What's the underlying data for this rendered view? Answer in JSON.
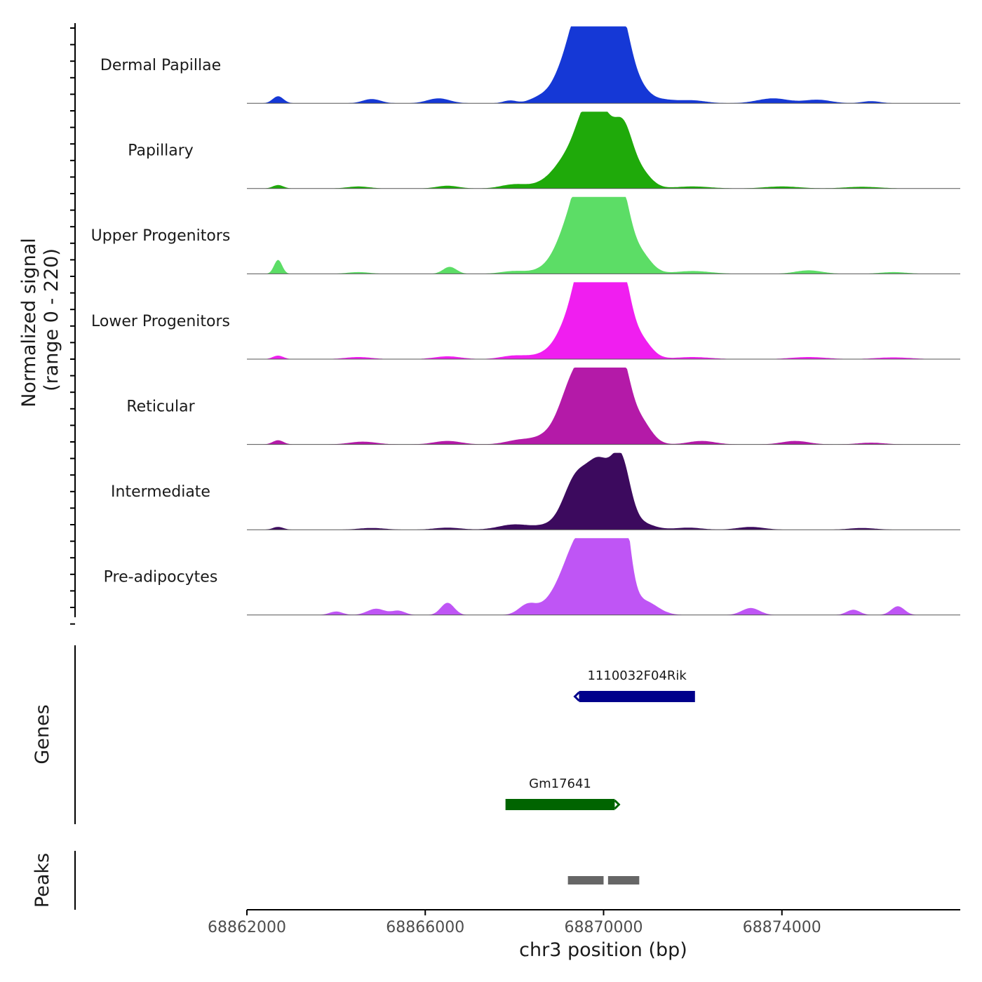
{
  "chart_data": {
    "type": "area",
    "title": "",
    "xlabel": "chr3 position (bp)",
    "xlim": [
      68862000,
      68878000
    ],
    "x_ticks": [
      68862000,
      68866000,
      68870000,
      68874000
    ],
    "x_tick_labels": [
      "68862000",
      "68866000",
      "68870000",
      "68874000"
    ],
    "signal_panel": {
      "ylabel_line1": "Normalized signal",
      "ylabel_line2": "(range 0 - 220)",
      "y_range": [
        0,
        220
      ],
      "tracks": [
        {
          "name": "Dermal Papillae",
          "color": "#1538d6",
          "peaks": [
            [
              68862700,
              20,
              120
            ],
            [
              68864800,
              12,
              200
            ],
            [
              68866300,
              14,
              250
            ],
            [
              68867900,
              8,
              150
            ],
            [
              68868500,
              10,
              200
            ],
            [
              68869300,
              140,
              350
            ],
            [
              68869550,
              160,
              240
            ],
            [
              68869900,
              150,
              230
            ],
            [
              68870150,
              110,
              220
            ],
            [
              68870400,
              170,
              200
            ],
            [
              68870700,
              60,
              250
            ],
            [
              68871300,
              10,
              300
            ],
            [
              68872000,
              8,
              300
            ],
            [
              68873800,
              14,
              350
            ],
            [
              68874800,
              10,
              300
            ],
            [
              68876000,
              6,
              200
            ]
          ]
        },
        {
          "name": "Papillary",
          "color": "#1faa0a",
          "peaks": [
            [
              68862700,
              10,
              120
            ],
            [
              68864500,
              6,
              250
            ],
            [
              68866500,
              8,
              250
            ],
            [
              68868000,
              12,
              300
            ],
            [
              68868700,
              10,
              300
            ],
            [
              68869300,
              100,
              350
            ],
            [
              68869600,
              120,
              220
            ],
            [
              68869900,
              140,
              220
            ],
            [
              68870150,
              80,
              220
            ],
            [
              68870450,
              140,
              200
            ],
            [
              68870800,
              50,
              250
            ],
            [
              68872000,
              6,
              400
            ],
            [
              68874000,
              6,
              400
            ],
            [
              68875800,
              5,
              400
            ]
          ]
        },
        {
          "name": "Upper Progenitors",
          "color": "#5cdd66",
          "peaks": [
            [
              68862700,
              40,
              90
            ],
            [
              68864500,
              5,
              250
            ],
            [
              68866550,
              20,
              150
            ],
            [
              68868000,
              8,
              300
            ],
            [
              68868800,
              15,
              300
            ],
            [
              68869300,
              150,
              300
            ],
            [
              68869600,
              180,
              220
            ],
            [
              68869900,
              190,
              220
            ],
            [
              68870150,
              110,
              220
            ],
            [
              68870400,
              180,
              200
            ],
            [
              68870800,
              60,
              250
            ],
            [
              68872000,
              8,
              400
            ],
            [
              68874600,
              10,
              300
            ],
            [
              68876500,
              5,
              300
            ]
          ]
        },
        {
          "name": "Lower Progenitors",
          "color": "#f01ef0",
          "peaks": [
            [
              68862700,
              10,
              120
            ],
            [
              68864500,
              6,
              300
            ],
            [
              68866500,
              8,
              300
            ],
            [
              68868000,
              10,
              300
            ],
            [
              68868700,
              12,
              300
            ],
            [
              68869300,
              120,
              300
            ],
            [
              68869550,
              170,
              200
            ],
            [
              68869900,
              180,
              220
            ],
            [
              68870150,
              110,
              220
            ],
            [
              68870400,
              200,
              200
            ],
            [
              68870800,
              60,
              250
            ],
            [
              68872000,
              6,
              400
            ],
            [
              68874600,
              6,
              400
            ],
            [
              68876500,
              5,
              400
            ]
          ]
        },
        {
          "name": "Reticular",
          "color": "#b41aa8",
          "peaks": [
            [
              68862700,
              12,
              120
            ],
            [
              68864600,
              8,
              300
            ],
            [
              68866500,
              10,
              300
            ],
            [
              68868100,
              12,
              300
            ],
            [
              68868700,
              18,
              300
            ],
            [
              68869300,
              150,
              300
            ],
            [
              68869700,
              130,
              300
            ],
            [
              68869900,
              180,
              220
            ],
            [
              68870150,
              70,
              220
            ],
            [
              68870400,
              190,
              200
            ],
            [
              68870800,
              70,
              250
            ],
            [
              68872200,
              10,
              300
            ],
            [
              68874300,
              10,
              300
            ],
            [
              68876000,
              5,
              300
            ]
          ]
        },
        {
          "name": "Intermediate",
          "color": "#3c0a5e",
          "peaks": [
            [
              68862700,
              8,
              120
            ],
            [
              68864800,
              5,
              300
            ],
            [
              68866500,
              6,
              300
            ],
            [
              68868000,
              15,
              350
            ],
            [
              68868800,
              12,
              300
            ],
            [
              68869300,
              100,
              250
            ],
            [
              68869600,
              90,
              250
            ],
            [
              68869900,
              120,
              220
            ],
            [
              68870150,
              60,
              220
            ],
            [
              68870400,
              170,
              200
            ],
            [
              68870800,
              20,
              300
            ],
            [
              68871900,
              6,
              300
            ],
            [
              68873300,
              8,
              300
            ],
            [
              68875800,
              5,
              300
            ]
          ]
        },
        {
          "name": "Pre-adipocytes",
          "color": "#bf55f5",
          "peaks": [
            [
              68864000,
              10,
              150
            ],
            [
              68864900,
              18,
              200
            ],
            [
              68865400,
              12,
              150
            ],
            [
              68866500,
              35,
              150
            ],
            [
              68868300,
              30,
              200
            ],
            [
              68868800,
              25,
              250
            ],
            [
              68869300,
              140,
              300
            ],
            [
              68869700,
              120,
              300
            ],
            [
              68869900,
              100,
              300
            ],
            [
              68870200,
              60,
              220
            ],
            [
              68870400,
              290,
              180
            ],
            [
              68870900,
              40,
              300
            ],
            [
              68873300,
              20,
              200
            ],
            [
              68875600,
              15,
              150
            ],
            [
              68876600,
              25,
              150
            ]
          ]
        }
      ]
    },
    "genes_panel": {
      "ylabel": "Genes",
      "genes": [
        {
          "name": "1110032F04Rik",
          "start": 68869450,
          "end": 68872050,
          "strand": "-",
          "color": "#00008b",
          "row": 1
        },
        {
          "name": "Gm17641",
          "start": 68867800,
          "end": 68870250,
          "strand": "+",
          "color": "#006400",
          "row": 2
        }
      ]
    },
    "peaks_panel": {
      "ylabel": "Peaks",
      "peaks": [
        {
          "start": 68869200,
          "end": 68870000,
          "color": "#666666"
        },
        {
          "start": 68870100,
          "end": 68870800,
          "color": "#666666"
        }
      ]
    }
  }
}
